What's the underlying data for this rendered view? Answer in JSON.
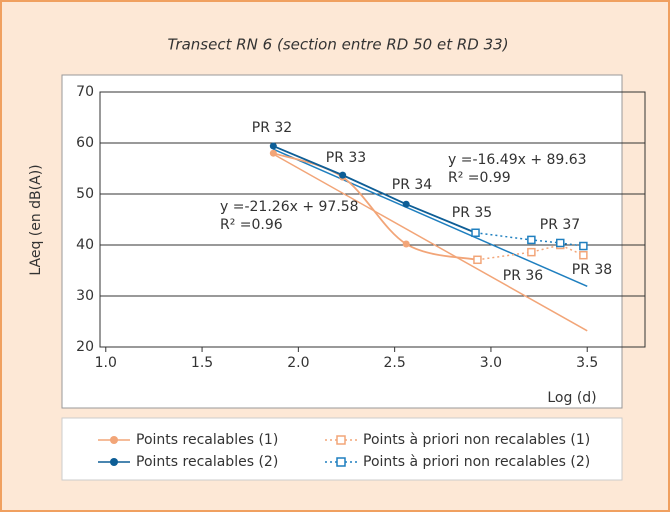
{
  "chart_data": {
    "type": "line",
    "title": "Transect RN 6 (section entre RD 50 et  RD 33)",
    "x_label": "Log (d)",
    "y_label": "LAeq (en dB(A))",
    "xlim": [
      0.97,
      3.8
    ],
    "xticks": [
      {
        "value": 1.0,
        "label": "1.0"
      },
      1.5,
      {
        "value": 2.0,
        "label": "2.0"
      },
      2.5,
      {
        "value": 3.0,
        "label": "3.0"
      },
      3.5
    ],
    "ylim": [
      20,
      70
    ],
    "yticks": [
      20,
      30,
      40,
      50,
      60,
      70
    ],
    "grid": true,
    "series": [
      {
        "name": "Points recalables (1)",
        "color": "#f2a578",
        "marker": "circle",
        "line": "smooth",
        "x": [
          1.87,
          2.23,
          2.56,
          2.93
        ],
        "values": [
          58,
          53.3,
          40.2,
          37.1
        ]
      },
      {
        "name": "Points recalables (2)",
        "color": "#0e5e96",
        "marker": "circle",
        "line": "solid",
        "x": [
          1.87,
          2.23,
          2.56,
          2.92
        ],
        "values": [
          59.4,
          53.7,
          48,
          42.4
        ]
      },
      {
        "name": "Points à priori non recalables (1)",
        "color": "#f2a578",
        "marker": "square",
        "line": "dotted",
        "x": [
          2.93,
          3.21,
          3.36,
          3.48
        ],
        "values": [
          37.1,
          38.6,
          40,
          38
        ]
      },
      {
        "name": "Points à priori non recalables (2)",
        "color": "#1f7fbf",
        "marker": "square",
        "line": "dotted",
        "x": [
          2.92,
          3.21,
          3.36,
          3.48
        ],
        "values": [
          42.4,
          41,
          40.4,
          39.8
        ]
      }
    ],
    "trendlines": [
      {
        "equation": "y =-21.26x + 97.58",
        "r2": "R² =0.96",
        "color": "#f2a578",
        "x": [
          1.87,
          3.5
        ],
        "values": [
          57.82,
          23.17
        ]
      },
      {
        "equation": "y =-16.49x + 89.63",
        "r2": "R² =0.99",
        "color": "#1f7fbf",
        "x": [
          1.87,
          3.5
        ],
        "values": [
          58.79,
          31.9
        ]
      }
    ],
    "point_labels": [
      "PR 32",
      "PR 33",
      "PR 34",
      "PR 35",
      "PR 36",
      "PR 37",
      "PR 38"
    ]
  }
}
